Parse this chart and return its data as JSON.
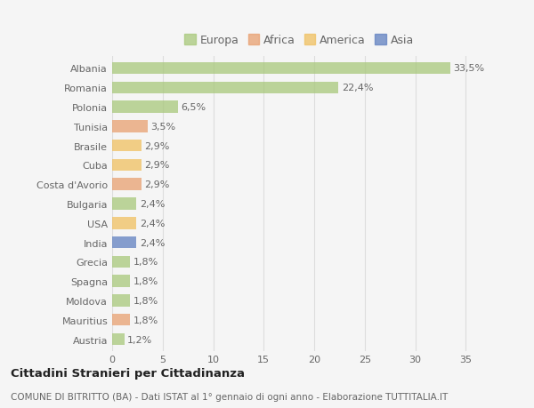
{
  "categories": [
    "Albania",
    "Romania",
    "Polonia",
    "Tunisia",
    "Brasile",
    "Cuba",
    "Costa d'Avorio",
    "Bulgaria",
    "USA",
    "India",
    "Grecia",
    "Spagna",
    "Moldova",
    "Mauritius",
    "Austria"
  ],
  "values": [
    33.5,
    22.4,
    6.5,
    3.5,
    2.9,
    2.9,
    2.9,
    2.4,
    2.4,
    2.4,
    1.8,
    1.8,
    1.8,
    1.8,
    1.2
  ],
  "labels": [
    "33,5%",
    "22,4%",
    "6,5%",
    "3,5%",
    "2,9%",
    "2,9%",
    "2,9%",
    "2,4%",
    "2,4%",
    "2,4%",
    "1,8%",
    "1,8%",
    "1,8%",
    "1,8%",
    "1,2%"
  ],
  "colors": [
    "#a8c87a",
    "#a8c87a",
    "#a8c87a",
    "#e8a070",
    "#f0c060",
    "#f0c060",
    "#e8a070",
    "#a8c87a",
    "#f0c060",
    "#6080c0",
    "#a8c87a",
    "#a8c87a",
    "#a8c87a",
    "#e8a070",
    "#a8c87a"
  ],
  "legend": {
    "Europa": "#a8c87a",
    "Africa": "#e8a070",
    "America": "#f0c060",
    "Asia": "#6080c0"
  },
  "title": "Cittadini Stranieri per Cittadinanza",
  "subtitle": "COMUNE DI BITRITTO (BA) - Dati ISTAT al 1° gennaio di ogni anno - Elaborazione TUTTITALIA.IT",
  "xlim": [
    0,
    37
  ],
  "xticks": [
    0,
    5,
    10,
    15,
    20,
    25,
    30,
    35
  ],
  "background_color": "#f5f5f5",
  "plot_bg_color": "#f5f5f5",
  "grid_color": "#dddddd",
  "bar_height": 0.62,
  "label_fontsize": 8.0,
  "tick_fontsize": 8.0,
  "legend_marker_color_alpha": 0.75
}
